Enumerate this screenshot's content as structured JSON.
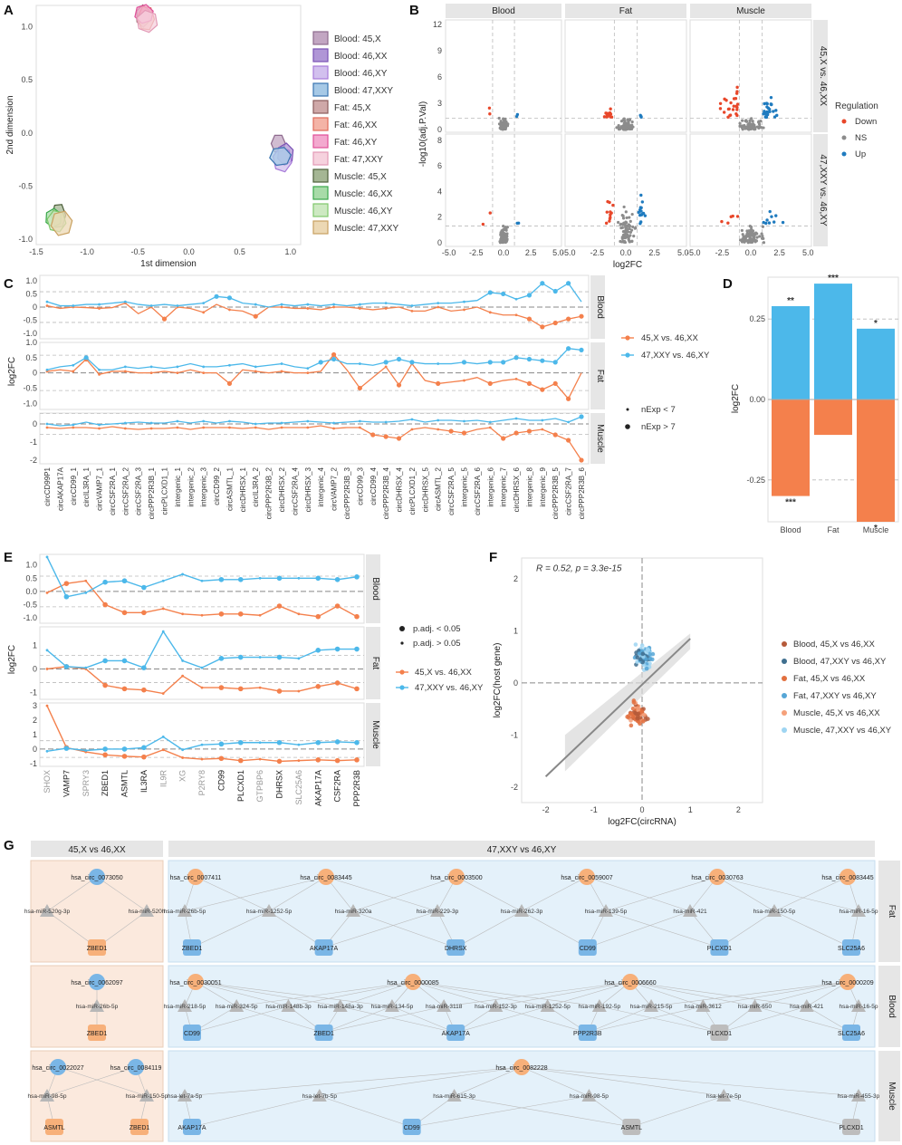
{
  "panels": {
    "A": "A",
    "B": "B",
    "C": "C",
    "D": "D",
    "E": "E",
    "F": "F",
    "G": "G"
  },
  "colors": {
    "orange": "#f4804c",
    "blue": "#4cb8ea",
    "down": "#e8472a",
    "up": "#1f7bbf",
    "ns": "#8c8c8c",
    "light_orange": "#fbe9dd",
    "light_blue": "#e4f1fa"
  },
  "panelA": {
    "chart_data": {
      "type": "scatter",
      "xlabel": "1st dimension",
      "ylabel": "2nd dimension",
      "xlim": [
        -1.5,
        1.1
      ],
      "ylim": [
        -1.05,
        1.2
      ],
      "xticks": [
        "-1.5",
        "-1.0",
        "-0.5",
        "0.0",
        "0.5",
        "1.0"
      ],
      "yticks": [
        "1.0",
        "0.5",
        "0.0",
        "-0.5",
        "-1.0"
      ],
      "groups": [
        {
          "name": "Blood: 45,X",
          "color": "#8e6a8e",
          "fill": "#c2a6c2",
          "center": [
            0.88,
            -0.1
          ]
        },
        {
          "name": "Blood: 46,XX",
          "color": "#7a52b5",
          "fill": "#b096d6",
          "center": [
            0.95,
            -0.2
          ]
        },
        {
          "name": "Blood: 46,XY",
          "color": "#a77ad9",
          "fill": "#d2c0ee",
          "center": [
            0.92,
            -0.25
          ]
        },
        {
          "name": "Blood: 47,XXY",
          "color": "#3a74b0",
          "fill": "#a6c9e6",
          "center": [
            0.9,
            -0.22
          ]
        },
        {
          "name": "Fat: 45,X",
          "color": "#8b5c5c",
          "fill": "#cfa8a8",
          "center": [
            -0.45,
            1.1
          ]
        },
        {
          "name": "Fat: 46,XX",
          "color": "#e06a5a",
          "fill": "#f4b3a6",
          "center": [
            -0.42,
            1.08
          ]
        },
        {
          "name": "Fat: 46,XY",
          "color": "#e04f98",
          "fill": "#f3a9cf",
          "center": [
            -0.44,
            1.12
          ]
        },
        {
          "name": "Fat: 47,XXY",
          "color": "#e39ab6",
          "fill": "#f6d2de",
          "center": [
            -0.41,
            1.05
          ]
        },
        {
          "name": "Muscle: 45,X",
          "color": "#4c5f3a",
          "fill": "#a5b694",
          "center": [
            -1.28,
            -0.78
          ]
        },
        {
          "name": "Muscle: 46,XX",
          "color": "#3aa84a",
          "fill": "#a8dba8",
          "center": [
            -1.33,
            -0.8
          ]
        },
        {
          "name": "Muscle: 46,XY",
          "color": "#7fc86b",
          "fill": "#cde9c2",
          "center": [
            -1.3,
            -0.83
          ]
        },
        {
          "name": "Muscle: 47,XXY",
          "color": "#c9a160",
          "fill": "#ecd8b4",
          "center": [
            -1.25,
            -0.85
          ]
        }
      ]
    }
  },
  "panelB": {
    "chart_data": {
      "type": "scatter",
      "facets_cols": [
        "Blood",
        "Fat",
        "Muscle"
      ],
      "facets_rows": [
        "45,X vs. 46,XX",
        "47,XXY vs. 46,XY"
      ],
      "xlabel": "log2FC",
      "ylabel": "-log10(adj.P.Val)",
      "xticks": [
        "-5.0",
        "-2.5",
        "0.0",
        "2.5",
        "5.0"
      ],
      "yticks_top": [
        "12",
        "9",
        "6",
        "3",
        "0"
      ],
      "yticks_bottom": [
        "8",
        "6",
        "4",
        "2",
        "0"
      ],
      "legend_title": "Regulation",
      "legend": [
        "Down",
        "NS",
        "Up"
      ]
    }
  },
  "panelC": {
    "chart_data": {
      "type": "line",
      "ylabel": "log2FC",
      "facets": [
        "Blood",
        "Fat",
        "Muscle"
      ],
      "categories": [
        "circCD99P1",
        "circAKAP17A",
        "circCD99_1",
        "circIL3RA_1",
        "circVAMP7_1",
        "circCSF2RA_1",
        "circCSF2RA_2",
        "circCSF2RA_3",
        "circPPP2R3B_1",
        "circPLCXD1_1",
        "intergenic_1",
        "intergenic_2",
        "intergenic_3",
        "circCD99_2",
        "circASMTL_1",
        "circDHRSX_1",
        "circIL3RA_2",
        "circPPP2R3B_2",
        "circDHRSX_2",
        "circCSF2RA_4",
        "circDHRSX_3",
        "intergenic_4",
        "circVAMP7_2",
        "circPPP2R3B_3",
        "circCD99_3",
        "circCD99_4",
        "circPPP2R3B_4",
        "circDHRSX_4",
        "circPLCXD1_2",
        "circDHRSX_5",
        "circASMTL_2",
        "circCSF2RA_5",
        "intergenic_5",
        "circCSF2RA_6",
        "intergenic_6",
        "intergenic_7",
        "circDHRSX_6",
        "intergenic_8",
        "intergenic_9",
        "circPPP2R3B_5",
        "circCSF2RA_7",
        "circPPP2R3B_6"
      ],
      "series": [
        {
          "name": "45,X vs. 46,XX",
          "facet": "Blood",
          "values": [
            0.05,
            -0.05,
            0,
            -0.02,
            -0.05,
            -0.02,
            0.15,
            -0.25,
            0,
            -0.45,
            0,
            -0.05,
            -0.2,
            0.1,
            -0.1,
            -0.15,
            -0.35,
            0,
            0,
            -0.05,
            -0.05,
            -0.1,
            0,
            0,
            -0.05,
            -0.1,
            -0.05,
            0,
            -0.15,
            -0.15,
            0,
            -0.15,
            -0.1,
            0,
            -0.2,
            -0.3,
            -0.3,
            -0.45,
            -0.75,
            -0.6,
            -0.45,
            -0.35
          ]
        },
        {
          "name": "47,XXY vs. 46,XY",
          "facet": "Blood",
          "values": [
            0.2,
            0.05,
            0.05,
            0.1,
            0.1,
            0.15,
            0.2,
            0.1,
            0.05,
            0.1,
            0.05,
            0.1,
            0.15,
            0.4,
            0.35,
            0.15,
            0.1,
            0,
            0.1,
            0.05,
            0.1,
            0.05,
            0.1,
            0.05,
            0.1,
            0.15,
            0.15,
            0.1,
            0.05,
            0.1,
            0.15,
            0.15,
            0.2,
            0.25,
            0.55,
            0.5,
            0.3,
            0.45,
            0.9,
            0.6,
            0.9,
            0.2
          ]
        },
        {
          "name": "45,X vs. 46,XX",
          "facet": "Fat",
          "values": [
            0.05,
            0.1,
            0.05,
            0.45,
            -0.05,
            0.05,
            0.05,
            0,
            0,
            0.05,
            0,
            0.1,
            0,
            0,
            -0.35,
            0.1,
            0.05,
            0,
            0.05,
            0,
            0,
            0.05,
            0.6,
            0.1,
            -0.5,
            -0.15,
            0.2,
            -0.4,
            0.3,
            -0.25,
            -0.35,
            -0.3,
            -0.25,
            -0.15,
            -0.35,
            -0.25,
            -0.2,
            -0.35,
            -0.55,
            -0.35,
            -0.85,
            0
          ]
        },
        {
          "name": "47,XXY vs. 46,XY",
          "facet": "Fat",
          "values": [
            0.1,
            0.2,
            0.25,
            0.5,
            0.1,
            0.1,
            0.2,
            0.15,
            0.2,
            0.15,
            0.2,
            0.3,
            0.2,
            0.2,
            0.25,
            0.3,
            0.2,
            0.25,
            0.3,
            0.2,
            0.15,
            0.35,
            0.45,
            0.3,
            0.3,
            0.25,
            0.35,
            0.45,
            0.35,
            0.3,
            0.3,
            0.3,
            0.35,
            0.3,
            0.35,
            0.35,
            0.5,
            0.45,
            0.4,
            0.35,
            0.8,
            0.75
          ]
        },
        {
          "name": "45,X vs. 46,XX",
          "facet": "Muscle",
          "values": [
            -0.2,
            -0.25,
            -0.2,
            -0.2,
            -0.25,
            -0.15,
            -0.25,
            -0.3,
            -0.25,
            -0.25,
            -0.2,
            -0.3,
            -0.2,
            -0.2,
            -0.2,
            -0.25,
            -0.2,
            -0.3,
            -0.2,
            -0.2,
            -0.2,
            -0.1,
            -0.25,
            -0.2,
            -0.2,
            -0.6,
            -0.7,
            -0.8,
            -0.3,
            -0.2,
            -0.3,
            -0.4,
            -0.5,
            -0.3,
            -0.2,
            -0.8,
            -0.5,
            -0.4,
            -0.3,
            -0.6,
            -0.9,
            -2.0
          ]
        },
        {
          "name": "47,XXY vs. 46,XY",
          "facet": "Muscle",
          "values": [
            0,
            -0.1,
            -0.05,
            0.1,
            -0.05,
            0,
            0.05,
            0.1,
            0.05,
            0.05,
            0.15,
            0.05,
            0.15,
            0.05,
            0.15,
            0.1,
            0,
            0.05,
            0.05,
            0.1,
            0.15,
            0.1,
            0.05,
            0.1,
            0.15,
            0.1,
            0.1,
            0.15,
            0.25,
            0.1,
            0.2,
            0.2,
            0.15,
            0.2,
            0.1,
            0.2,
            0.3,
            0.2,
            0.2,
            0.3,
            0.1,
            0.4
          ]
        }
      ],
      "yticks": [
        "1.0",
        "0.5",
        "0",
        "-0.5",
        "-1.0"
      ],
      "yticks_muscle": [
        "0",
        "-1",
        "-2"
      ],
      "legend_series": [
        "45,X vs. 46,XX",
        "47,XXY vs. 46,XY"
      ],
      "legend_nexp": [
        "nExp < 7",
        "nExp > 7"
      ]
    }
  },
  "panelD": {
    "chart_data": {
      "type": "bar",
      "categories": [
        "Blood",
        "Fat",
        "Muscle"
      ],
      "ylabel": "log2FC",
      "ylim": [
        -0.38,
        0.38
      ],
      "yticks": [
        "0.25",
        "0.00",
        "-0.25"
      ],
      "series": [
        {
          "name": "47,XXY vs. 46,XY",
          "values": [
            0.29,
            0.36,
            0.22
          ],
          "stars": [
            "**",
            "***",
            "*"
          ]
        },
        {
          "name": "45,X vs. 46,XX",
          "values": [
            -0.3,
            -0.11,
            -0.38
          ],
          "stars": [
            "***",
            "",
            "*"
          ]
        }
      ]
    }
  },
  "panelE": {
    "chart_data": {
      "type": "line",
      "ylabel": "log2FC",
      "facets": [
        "Blood",
        "Fat",
        "Muscle"
      ],
      "categories": [
        "SHOX",
        "VAMP7",
        "SPRY3",
        "ZBED1",
        "ASMTL",
        "IL3RA",
        "IL9R",
        "XG",
        "P2RY8",
        "CD99",
        "PLCXD1",
        "GTPBP6",
        "DHRSX",
        "SLC25A6",
        "AKAP17A",
        "CSF2RA",
        "PPP2R3B"
      ],
      "series": [
        {
          "name": "45,X vs. 46,XX",
          "facet": "Blood",
          "values": [
            -0.05,
            0.3,
            0.4,
            -0.5,
            -0.8,
            -0.8,
            -0.65,
            -0.85,
            -0.9,
            -0.85,
            -0.85,
            -0.9,
            -0.55,
            -0.85,
            -0.95,
            -0.55,
            -0.95
          ]
        },
        {
          "name": "47,XXY vs. 46,XY",
          "facet": "Blood",
          "values": [
            1.3,
            -0.2,
            -0.05,
            0.35,
            0.4,
            0.15,
            0.4,
            0.65,
            0.4,
            0.45,
            0.45,
            0.5,
            0.5,
            0.5,
            0.5,
            0.45,
            0.55
          ]
        },
        {
          "name": "45,X vs. 46,XX",
          "facet": "Fat",
          "values": [
            0,
            0.1,
            0,
            -0.7,
            -0.85,
            -0.9,
            -1.05,
            -0.3,
            -0.8,
            -0.8,
            -0.85,
            -0.8,
            -0.95,
            -0.95,
            -0.75,
            -0.6,
            -0.85
          ]
        },
        {
          "name": "47,XXY vs. 46,XY",
          "facet": "Fat",
          "values": [
            0.8,
            0.1,
            0.05,
            0.35,
            0.35,
            0.05,
            1.6,
            0.35,
            0.05,
            0.45,
            0.5,
            0.5,
            0.5,
            0.45,
            0.8,
            0.85,
            0.85
          ]
        },
        {
          "name": "45,X vs. 46,XX",
          "facet": "Muscle",
          "values": [
            3.0,
            0.1,
            -0.2,
            -0.4,
            -0.5,
            -0.55,
            -0.05,
            -0.6,
            -0.7,
            -0.65,
            -0.8,
            -0.7,
            -0.85,
            -0.8,
            -0.75,
            -0.8,
            -0.75
          ]
        },
        {
          "name": "47,XXY vs. 46,XY",
          "facet": "Muscle",
          "values": [
            -0.15,
            0.05,
            -0.1,
            0,
            0,
            0.1,
            0.85,
            -0.05,
            0.3,
            0.35,
            0.45,
            0.45,
            0.45,
            0.3,
            0.45,
            0.5,
            0.45
          ]
        }
      ],
      "grey_labels": [
        "SHOX",
        "SPRY3",
        "IL9R",
        "XG",
        "P2RY8",
        "GTPBP6",
        "SLC25A6"
      ],
      "yticks": [
        "1.0",
        "0.5",
        "0.0",
        "-0.5",
        "-1.0"
      ],
      "yticks_fat": [
        "1",
        "0",
        "-1"
      ],
      "yticks_muscle": [
        "3",
        "2",
        "1",
        "0",
        "-1"
      ],
      "legend_padj": [
        "p.adj. < 0.05",
        "p.adj. > 0.05"
      ],
      "legend_series": [
        "45,X vs. 46,XX",
        "47,XXY vs. 46,XY"
      ]
    }
  },
  "panelF": {
    "chart_data": {
      "type": "scatter",
      "xlabel": "log2FC(circRNA)",
      "ylabel": "log2FC(host gene)",
      "annotation": "R = 0.52, p = 3.3e-15",
      "xticks": [
        "-2",
        "-1",
        "0",
        "1",
        "2"
      ],
      "yticks": [
        "2",
        "1",
        "0",
        "-1",
        "-2"
      ],
      "legend": [
        {
          "name": "Blood, 45,X vs 46,XX",
          "color": "#b55a3a"
        },
        {
          "name": "Blood, 47,XXY vs 46,XY",
          "color": "#3f6f8f"
        },
        {
          "name": "Fat, 45,X vs 46,XX",
          "color": "#e2703f"
        },
        {
          "name": "Fat, 47,XXY vs 46,XY",
          "color": "#56a6d6"
        },
        {
          "name": "Muscle, 45,X vs 46,XX",
          "color": "#f5a07a"
        },
        {
          "name": "Muscle, 47,XXY vs 46,XY",
          "color": "#9ed5f2"
        }
      ]
    }
  },
  "panelG": {
    "col1_header": "45,X vs 46,XX",
    "col2_header": "47,XXY vs 46,XY",
    "rows": [
      "Fat",
      "Blood",
      "Muscle"
    ],
    "networks": [
      {
        "row": "Fat",
        "col": 1,
        "circ": [
          "hsa_circ_0073050"
        ],
        "mirna": [
          "hsa-miR-520g-3p",
          "hsa-miR-520h"
        ],
        "genes": [
          "ZBED1"
        ]
      },
      {
        "row": "Fat",
        "col": 2,
        "circ": [
          "hsa_circ_0007411",
          "hsa_circ_0083445",
          "hsa_circ_0003500",
          "hsa_circ_0059007",
          "hsa_circ_0030763",
          "hsa_circ_0083445"
        ],
        "mirna": [
          "hsa-miR-26b-5p",
          "hsa-miR-1252-5p",
          "hsa-miR-320a",
          "hsa-miR-229-3p",
          "hsa-miR-262-3p",
          "hsa-miR-139-5p",
          "hsa-miR-421",
          "hsa-miR-150-5p",
          "hsa-miR-16-5p"
        ],
        "genes": [
          "ZBED1",
          "AKAP17A",
          "DHRSX",
          "CD99",
          "PLCXD1",
          "SLC25A6"
        ]
      },
      {
        "row": "Blood",
        "col": 1,
        "circ": [
          "hsa_circ_0062097"
        ],
        "mirna": [
          "hsa-miR-26b-5p"
        ],
        "genes": [
          "ZBED1"
        ]
      },
      {
        "row": "Blood",
        "col": 2,
        "circ": [
          "hsa_circ_0030051",
          "hsa_circ_0000085",
          "hsa_circ_0006660",
          "hsa_circ_0000209"
        ],
        "mirna": [
          "hsa-miR-218-5p",
          "hsa-miR-324-5p",
          "hsa-miR-148b-3p",
          "hsa-miR-148a-3p",
          "hsa-miR-134-5p",
          "hsa-miR-3118",
          "hsa-miR-152-3p",
          "hsa-miR-1252-5p",
          "hsa-miR-192-5p",
          "hsa-miR-215-5p",
          "hsa-miR-3612",
          "hsa-miR-650",
          "hsa-miR-421",
          "hsa-miR-16-5p"
        ],
        "genes": [
          "CD99",
          "ZBED1",
          "AKAP17A",
          "PPP2R3B",
          "PLCXD1",
          "SLC25A6"
        ]
      },
      {
        "row": "Muscle",
        "col": 1,
        "circ": [
          "hsa_circ_0022027",
          "hsa_circ_0084119"
        ],
        "mirna": [
          "hsa-miR-98-5p",
          "hsa-miR-150-5p"
        ],
        "genes": [
          "ASMTL",
          "ZBED1"
        ]
      },
      {
        "row": "Muscle",
        "col": 2,
        "circ": [
          "hsa_circ_0082228"
        ],
        "mirna": [
          "hsa-let-7a-5p",
          "hsa-let-7b-5p",
          "hsa-miR-615-3p",
          "hsa-miR-98-5p",
          "hsa-let-7e-5p",
          "hsa-miR-455-3p"
        ],
        "genes": [
          "AKAP17A",
          "CD99",
          "ASMTL",
          "PLCXD1"
        ]
      }
    ]
  }
}
